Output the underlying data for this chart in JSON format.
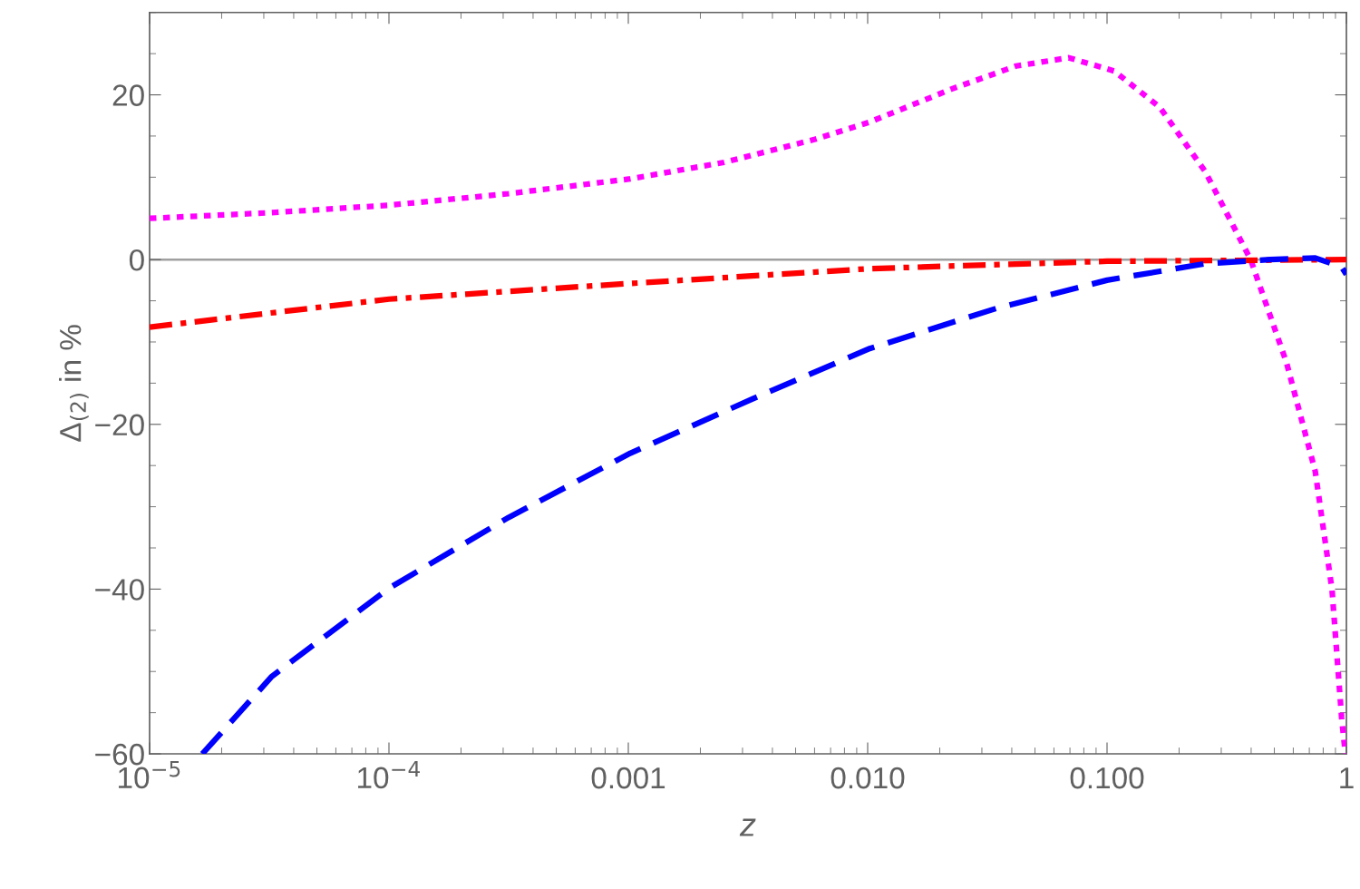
{
  "chart_data": {
    "type": "line",
    "xlabel": "z",
    "ylabel": "Δ$_{(2)}$ in %",
    "log": "x",
    "grid": false,
    "marker": "none",
    "xlim": [
      1e-05,
      1
    ],
    "xticks": [
      {
        "value": 1e-05,
        "label": "10$^{−5}$"
      },
      {
        "value": 0.0001,
        "label": "10$^{−4}$"
      },
      {
        "value": 0.001,
        "label": "0.001"
      },
      {
        "value": 0.01,
        "label": "0.010"
      },
      {
        "value": 0.1,
        "label": "0.100"
      },
      {
        "value": 1,
        "label": "1"
      }
    ],
    "ylim": [
      -60,
      30
    ],
    "yticks": [
      {
        "value": -60,
        "label": "−60"
      },
      {
        "value": -40,
        "label": "−40"
      },
      {
        "value": -20,
        "label": "−20"
      },
      0,
      20
    ],
    "ref_lines": [
      {
        "axis": "y",
        "value": 0,
        "color": "#a0a0a0",
        "line_style": "solid"
      }
    ],
    "series": [
      {
        "color": "#ff00ff",
        "line_style": "dotted",
        "x": [
          1e-05,
          3.24e-05,
          0.0001,
          0.000316,
          0.00102,
          0.00251,
          0.00603,
          0.0102,
          0.0224,
          0.0417,
          0.0692,
          0.107,
          0.166,
          0.257,
          0.398,
          0.562,
          0.741,
          0.871,
          0.955,
          0.99
        ],
        "values": [
          5.0,
          5.7,
          6.6,
          8.0,
          9.8,
          11.8,
          14.6,
          16.7,
          20.7,
          23.5,
          24.5,
          22.9,
          18.5,
          10.7,
          0,
          -12.5,
          -25.7,
          -40.1,
          -55.6,
          -60
        ]
      },
      {
        "color": "#ff0000",
        "line_style": "dashdot",
        "x": [
          1e-05,
          0.0001,
          0.00102,
          0.0102,
          0.1,
          1
        ],
        "values": [
          -8.2,
          -4.8,
          -2.9,
          -1.1,
          -0.2,
          0
        ]
      },
      {
        "color": "#0000ff",
        "line_style": "dashed",
        "x": [
          1.66e-05,
          3.24e-05,
          0.0001,
          0.000316,
          0.00102,
          0.00331,
          0.0102,
          0.0347,
          0.1,
          0.257,
          0.479,
          0.741,
          0.955,
          1
        ],
        "values": [
          -60,
          -50.6,
          -39.9,
          -31.3,
          -23.5,
          -16.9,
          -10.8,
          -5.9,
          -2.5,
          -0.5,
          0,
          0.2,
          -0.9,
          -1.8
        ]
      }
    ]
  }
}
